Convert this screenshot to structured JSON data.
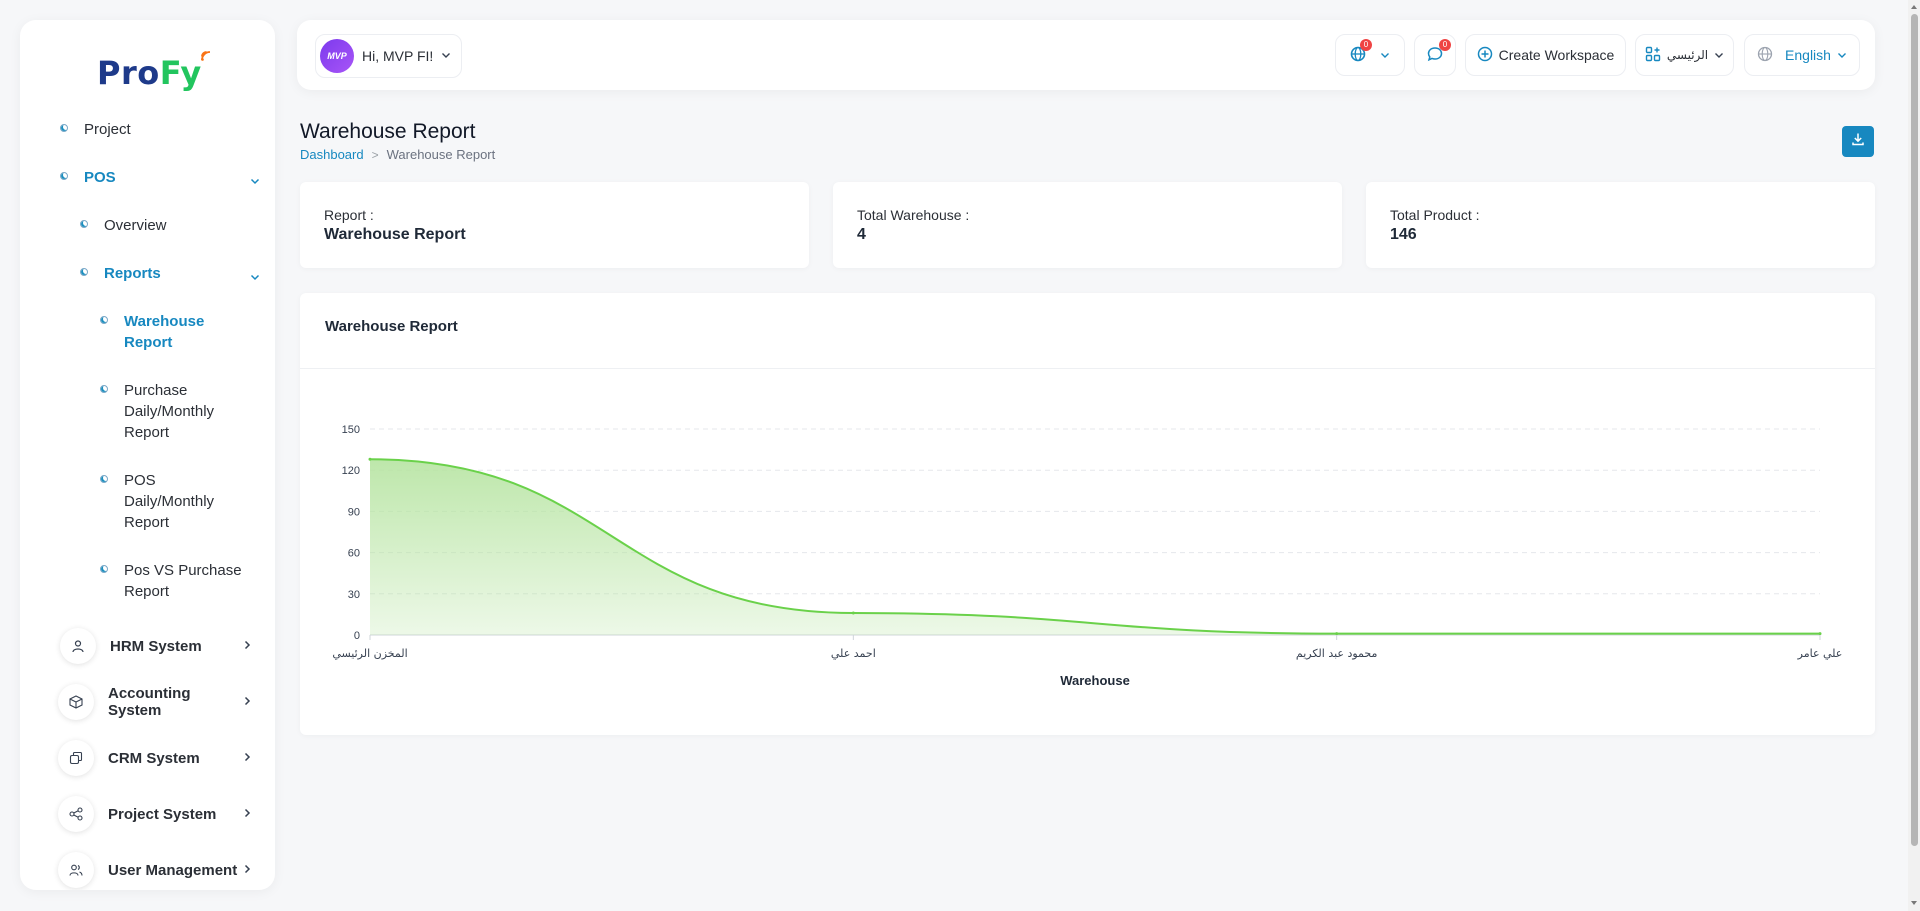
{
  "brand": {
    "logo_part1": "Pro",
    "logo_part2": "Fy"
  },
  "sidebar": {
    "project": "Project",
    "pos": "POS",
    "overview": "Overview",
    "reports": "Reports",
    "warehouse_report": "Warehouse Report",
    "purchase_report": "Purchase Daily/Monthly Report",
    "pos_report": "POS Daily/Monthly Report",
    "pos_vs_purchase": "Pos VS Purchase Report",
    "systems": [
      {
        "label": "HRM System",
        "icon": "user-icon"
      },
      {
        "label": "Accounting System",
        "icon": "box-icon"
      },
      {
        "label": "CRM System",
        "icon": "copy-icon"
      },
      {
        "label": "Project System",
        "icon": "share-icon"
      },
      {
        "label": "User Management",
        "icon": "users-icon"
      }
    ]
  },
  "header": {
    "user_greeting": "Hi, MVP FI!",
    "avatar_text": "MVP",
    "globe_badge": "0",
    "chat_badge": "0",
    "create_workspace": "Create Workspace",
    "workspace_name": "الرئيسي",
    "language": "English"
  },
  "page": {
    "title": "Warehouse Report",
    "breadcrumb_home": "Dashboard",
    "breadcrumb_sep": ">",
    "breadcrumb_current": "Warehouse Report"
  },
  "stats": [
    {
      "label": "Report :",
      "value": "Warehouse Report"
    },
    {
      "label": "Total Warehouse :",
      "value": "4"
    },
    {
      "label": "Total Product :",
      "value": "146"
    }
  ],
  "chart_card": {
    "title": "Warehouse Report"
  },
  "colors": {
    "accent": "#1788c0",
    "chart_line": "#6ad14a",
    "chart_fill": "#b6e4a1"
  },
  "chart_data": {
    "type": "area",
    "categories": [
      "المخزن الرئيسي",
      "احمد علي",
      "محمود عبد الكريم",
      "علي عامر"
    ],
    "values": [
      128,
      16,
      1,
      1
    ],
    "xlabel": "Warehouse",
    "ylabel": "",
    "ylim": [
      0,
      150
    ],
    "yticks": [
      0,
      30,
      60,
      90,
      120,
      150
    ],
    "grid": true,
    "smooth": true
  }
}
